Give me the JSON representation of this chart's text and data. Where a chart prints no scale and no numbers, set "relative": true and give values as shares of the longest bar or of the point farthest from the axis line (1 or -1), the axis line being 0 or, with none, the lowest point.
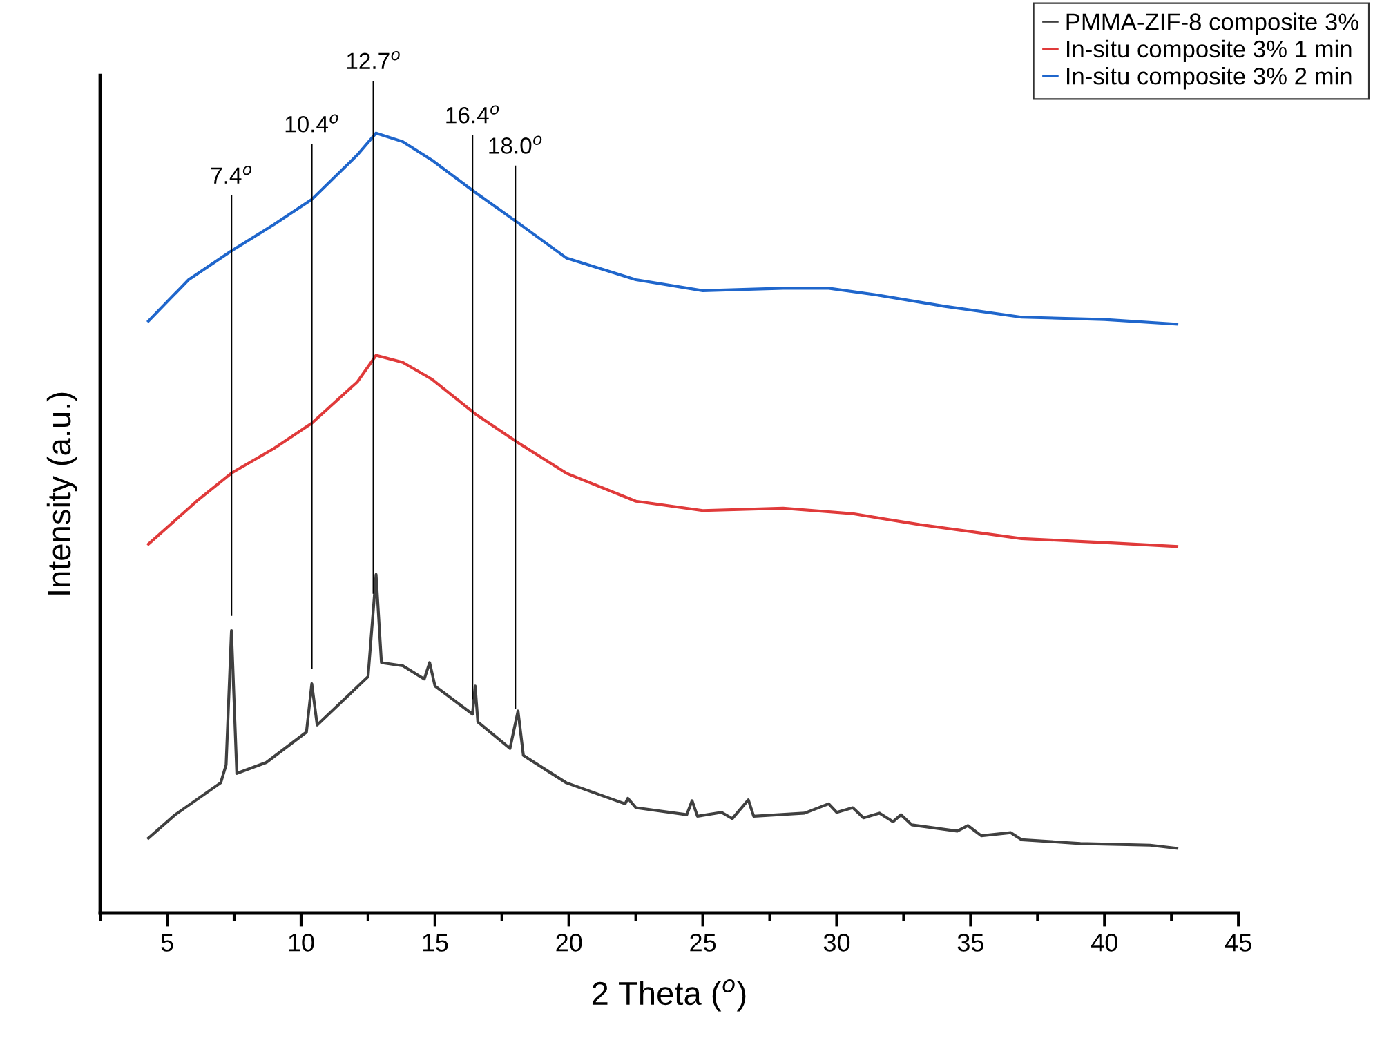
{
  "chart_data": {
    "type": "line",
    "xlabel": "2 Theta ($^{o}$)",
    "ylabel": "Intensity (a.u.)",
    "relative": true,
    "xlim": [
      2.5,
      45
    ],
    "xticks": [
      5,
      10,
      15,
      20,
      25,
      30,
      35,
      40,
      45
    ],
    "tick_labels": "x",
    "legend": "top right",
    "grid": false,
    "series": [
      {
        "name": "PMMA-ZIF-8 composite 3%",
        "color": "#404040",
        "x": [
          4.3,
          5.3,
          7.0,
          7.2,
          7.4,
          7.6,
          8.7,
          10.2,
          10.4,
          10.6,
          12.5,
          12.8,
          13.0,
          13.8,
          14.6,
          14.8,
          15.0,
          16.4,
          16.5,
          16.6,
          17.8,
          18.1,
          18.3,
          19.9,
          22.1,
          22.2,
          22.5,
          24.4,
          24.6,
          24.8,
          25.7,
          26.1,
          26.7,
          26.9,
          28.8,
          29.7,
          30.0,
          30.6,
          31.0,
          31.6,
          32.1,
          32.4,
          32.8,
          34.5,
          34.9,
          35.4,
          36.5,
          36.9,
          39.1,
          41.7,
          42.7
        ],
        "values": [
          0.096,
          0.126,
          0.167,
          0.19,
          0.362,
          0.179,
          0.193,
          0.232,
          0.294,
          0.241,
          0.303,
          0.434,
          0.321,
          0.317,
          0.3,
          0.321,
          0.291,
          0.255,
          0.291,
          0.245,
          0.211,
          0.259,
          0.202,
          0.167,
          0.14,
          0.147,
          0.135,
          0.126,
          0.144,
          0.124,
          0.129,
          0.121,
          0.145,
          0.124,
          0.128,
          0.14,
          0.129,
          0.135,
          0.122,
          0.128,
          0.117,
          0.126,
          0.113,
          0.105,
          0.112,
          0.099,
          0.103,
          0.094,
          0.089,
          0.087,
          0.083
        ]
      },
      {
        "name": "In-situ composite 3% 1 min",
        "color": "#e03a3a",
        "x": [
          4.3,
          6.1,
          7.4,
          9.0,
          10.4,
          12.1,
          12.8,
          13.8,
          14.9,
          16.5,
          18.1,
          19.9,
          22.5,
          25.0,
          28.0,
          30.6,
          33.1,
          36.9,
          40.0,
          42.7
        ],
        "values": [
          0.473,
          0.528,
          0.564,
          0.596,
          0.628,
          0.681,
          0.715,
          0.706,
          0.684,
          0.64,
          0.603,
          0.564,
          0.528,
          0.516,
          0.519,
          0.512,
          0.498,
          0.48,
          0.475,
          0.47
        ]
      },
      {
        "name": "In-situ composite 3% 2 min",
        "color": "#1f66cc",
        "x": [
          4.3,
          5.8,
          7.4,
          9.0,
          10.4,
          12.1,
          12.8,
          13.8,
          14.9,
          16.5,
          18.1,
          19.9,
          22.5,
          25.0,
          28.0,
          29.7,
          31.4,
          34.0,
          36.9,
          40.0,
          42.7
        ],
        "values": [
          0.759,
          0.812,
          0.849,
          0.883,
          0.915,
          0.972,
          1.0,
          0.989,
          0.965,
          0.924,
          0.885,
          0.84,
          0.812,
          0.798,
          0.801,
          0.801,
          0.793,
          0.778,
          0.764,
          0.761,
          0.755
        ]
      }
    ],
    "ref_lines": [
      {
        "axis": "x",
        "value": 7.4,
        "label": "7.4$^{o}$"
      },
      {
        "axis": "x",
        "value": 10.4,
        "label": "10.4$^{o}$"
      },
      {
        "axis": "x",
        "value": 12.7,
        "label": "12.7$^{o}$"
      },
      {
        "axis": "x",
        "value": 16.4,
        "label": "16.4$^{o}$"
      },
      {
        "axis": "x",
        "value": 18.0,
        "label": "18.0$^{o}$"
      }
    ]
  }
}
